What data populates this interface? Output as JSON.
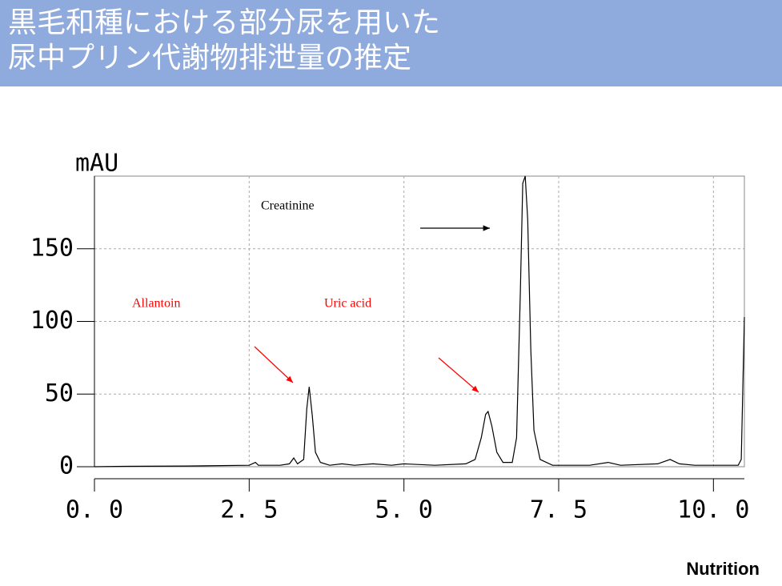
{
  "header": {
    "title_lines": [
      "黒毛和種における部分尿を用いた",
      "尿中プリン代謝物排泄量の推定"
    ]
  },
  "chart_data": {
    "type": "line",
    "y_label": "mAU",
    "xlim": [
      0,
      10.5
    ],
    "xticks": [
      {
        "value": 0,
        "label": "0. 0"
      },
      {
        "value": 2.5,
        "label": "2. 5"
      },
      {
        "value": 5,
        "label": "5. 0"
      },
      {
        "value": 7.5,
        "label": "7. 5"
      },
      {
        "value": 10,
        "label": "10. 0"
      }
    ],
    "ylim": [
      0,
      200
    ],
    "yticks": [
      0,
      50,
      100,
      150
    ],
    "grid": true,
    "series": [
      {
        "color": "#000000",
        "x": [
          0,
          0.5,
          1.5,
          2.5,
          2.6,
          2.65,
          3.0,
          3.15,
          3.22,
          3.28,
          3.38,
          3.43,
          3.47,
          3.52,
          3.57,
          3.65,
          3.8,
          4.0,
          4.2,
          4.5,
          4.8,
          5.0,
          5.5,
          6.0,
          6.15,
          6.25,
          6.32,
          6.36,
          6.42,
          6.5,
          6.6,
          6.75,
          6.82,
          6.88,
          6.92,
          6.96,
          7.0,
          7.05,
          7.1,
          7.2,
          7.4,
          8.0,
          8.3,
          8.5,
          9.1,
          9.3,
          9.45,
          9.7,
          10.4,
          10.45,
          10.5
        ],
        "values": [
          0,
          0.3,
          0.5,
          1,
          3,
          1,
          1,
          2,
          6,
          2,
          5,
          40,
          55,
          35,
          10,
          3,
          1,
          2,
          1,
          2,
          1,
          2,
          1,
          2,
          5,
          20,
          36,
          38,
          28,
          10,
          3,
          3,
          20,
          120,
          195,
          200,
          170,
          80,
          25,
          5,
          1,
          1,
          3,
          1,
          2,
          5,
          2,
          1,
          1,
          5,
          103
        ]
      }
    ],
    "annotations": [
      {
        "text": "Creatinine",
        "color": "#000000"
      },
      {
        "text": "Allantoin",
        "color": "#ff0000"
      },
      {
        "text": "Uric acid",
        "color": "#ff0000"
      }
    ]
  },
  "source": "Nutrition"
}
